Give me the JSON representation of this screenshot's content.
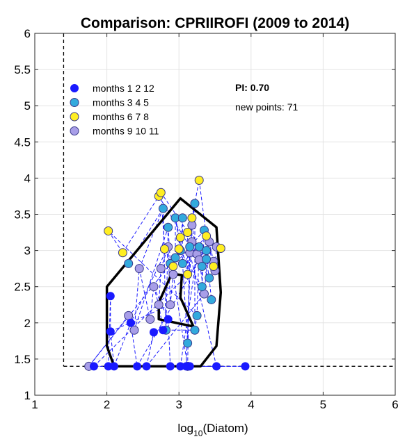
{
  "chart_data": {
    "type": "scatter",
    "title": "Comparison: CPRIIROFI (2009 to 2014)",
    "xlabel_base": "log",
    "xlabel_sub": "10",
    "xlabel_rest": "(Diatom)",
    "ylabel": "",
    "xlim": [
      1,
      6
    ],
    "ylim": [
      1,
      6
    ],
    "xticks": [
      1,
      2,
      3,
      4,
      5,
      6
    ],
    "yticks": [
      1,
      1.5,
      2,
      2.5,
      3,
      3.5,
      4,
      4.5,
      5,
      5.5,
      6
    ],
    "ytick_labels": [
      "1",
      "1.5",
      "2",
      "2.5",
      "3",
      "3.5",
      "4",
      "4.5",
      "5",
      "5.5",
      "6"
    ],
    "grid": true,
    "threshold": {
      "x": 1.4,
      "y": 1.4
    },
    "stats": {
      "pi_label": "PI: 0.70",
      "new_points_label": "new points: 71"
    },
    "legend_position": "top-left",
    "series": [
      {
        "name": "months 1  2  12",
        "color": "#1a1aff",
        "marker_size": "small",
        "points": [
          [
            1.82,
            1.4
          ],
          [
            2.02,
            1.4
          ],
          [
            2.1,
            1.4
          ],
          [
            2.42,
            1.4
          ],
          [
            2.55,
            1.4
          ],
          [
            2.88,
            1.4
          ],
          [
            3.02,
            1.4
          ],
          [
            3.1,
            1.4
          ],
          [
            3.15,
            1.4
          ],
          [
            3.52,
            1.4
          ],
          [
            3.92,
            1.4
          ],
          [
            2.05,
            2.37
          ],
          [
            2.05,
            1.88
          ],
          [
            2.33,
            2.0
          ],
          [
            2.65,
            1.87
          ],
          [
            2.78,
            1.9
          ],
          [
            2.85,
            2.05
          ]
        ]
      },
      {
        "name": "months 3  4  5",
        "color": "#33aadd",
        "marker_size": "large",
        "points": [
          [
            2.3,
            2.82
          ],
          [
            2.78,
            3.58
          ],
          [
            2.85,
            3.32
          ],
          [
            2.88,
            2.82
          ],
          [
            2.95,
            2.9
          ],
          [
            2.95,
            3.45
          ],
          [
            3.05,
            3.45
          ],
          [
            3.02,
            3.0
          ],
          [
            3.05,
            2.82
          ],
          [
            3.15,
            3.05
          ],
          [
            3.22,
            3.65
          ],
          [
            3.28,
            3.05
          ],
          [
            3.32,
            2.78
          ],
          [
            3.32,
            2.5
          ],
          [
            3.35,
            3.28
          ],
          [
            3.38,
            3.0
          ],
          [
            3.38,
            2.88
          ],
          [
            3.42,
            2.62
          ],
          [
            3.45,
            2.32
          ],
          [
            3.25,
            2.1
          ],
          [
            3.22,
            1.9
          ],
          [
            3.12,
            1.72
          ],
          [
            2.82,
            1.9
          ]
        ]
      },
      {
        "name": "months 6  7  8",
        "color": "#ffee22",
        "marker_size": "large",
        "points": [
          [
            2.02,
            3.27
          ],
          [
            2.22,
            2.97
          ],
          [
            2.72,
            3.75
          ],
          [
            2.75,
            3.8
          ],
          [
            2.8,
            3.02
          ],
          [
            2.92,
            2.78
          ],
          [
            3.0,
            3.02
          ],
          [
            3.02,
            3.18
          ],
          [
            3.12,
            3.25
          ],
          [
            3.18,
            3.45
          ],
          [
            3.28,
            3.97
          ],
          [
            3.38,
            3.2
          ],
          [
            3.48,
            2.78
          ],
          [
            3.58,
            3.03
          ],
          [
            3.12,
            2.67
          ]
        ]
      },
      {
        "name": "months 9  10  11",
        "color": "#a89ee8",
        "marker_size": "large",
        "points": [
          [
            1.75,
            1.4
          ],
          [
            2.3,
            2.1
          ],
          [
            2.38,
            1.9
          ],
          [
            2.45,
            2.75
          ],
          [
            2.6,
            2.05
          ],
          [
            2.65,
            2.5
          ],
          [
            2.72,
            2.25
          ],
          [
            2.75,
            2.75
          ],
          [
            2.85,
            3.05
          ],
          [
            2.88,
            2.25
          ],
          [
            2.92,
            2.67
          ],
          [
            3.12,
            1.4
          ],
          [
            3.15,
            2.97
          ],
          [
            3.18,
            3.12
          ],
          [
            3.18,
            3.35
          ],
          [
            3.25,
            2.95
          ],
          [
            3.28,
            2.87
          ],
          [
            3.35,
            2.4
          ],
          [
            3.42,
            3.12
          ],
          [
            3.48,
            2.85
          ],
          [
            3.5,
            2.72
          ],
          [
            3.52,
            3.05
          ]
        ]
      }
    ],
    "outer_hull": [
      [
        2.1,
        1.4
      ],
      [
        3.3,
        1.4
      ],
      [
        3.52,
        1.68
      ],
      [
        3.58,
        2.42
      ],
      [
        3.52,
        3.32
      ],
      [
        3.02,
        3.72
      ],
      [
        2.0,
        2.5
      ],
      [
        2.0,
        1.68
      ]
    ],
    "inner_hull": [
      [
        2.72,
        2.05
      ],
      [
        3.2,
        1.95
      ],
      [
        3.02,
        2.35
      ],
      [
        3.04,
        2.66
      ],
      [
        2.9,
        2.68
      ],
      [
        2.72,
        2.28
      ]
    ]
  }
}
